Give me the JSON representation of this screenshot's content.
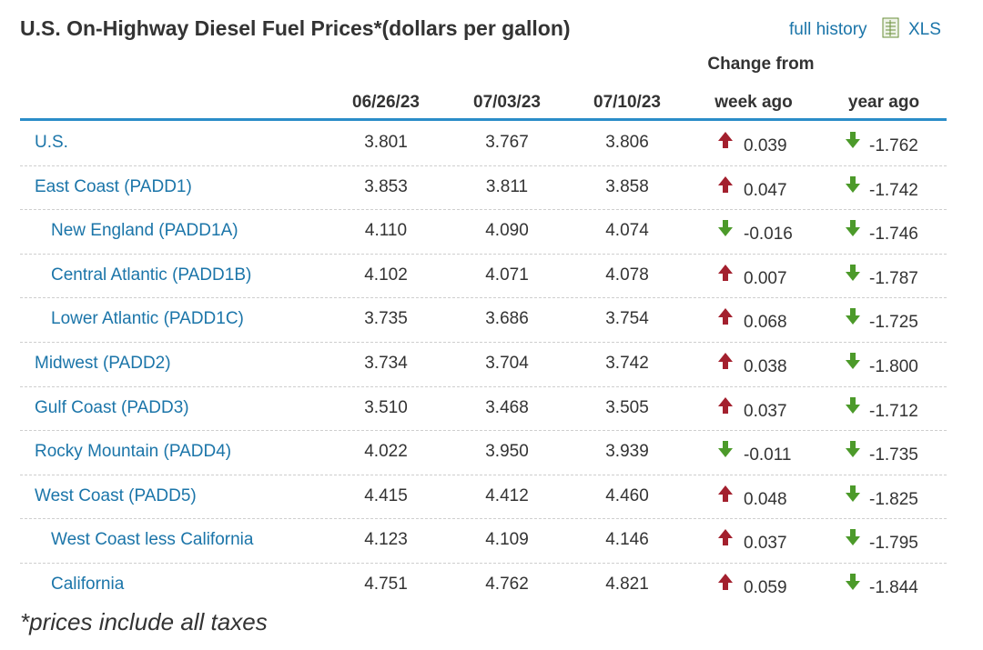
{
  "header": {
    "title": "U.S. On-Highway Diesel Fuel Prices*(dollars per gallon)",
    "links": [
      "full history",
      "XLS"
    ]
  },
  "table": {
    "group_header": "Change from",
    "columns": [
      "06/26/23",
      "07/03/23",
      "07/10/23",
      "week ago",
      "year ago"
    ],
    "rows": [
      {
        "label": "U.S.",
        "cells": [
          "3.801",
          "3.767",
          "3.806",
          "0.039",
          "-1.762"
        ]
      },
      {
        "label": "East Coast (PADD1)",
        "cells": [
          "3.853",
          "3.811",
          "3.858",
          "0.047",
          "-1.742"
        ],
        "subrows": [
          {
            "label": "New England (PADD1A)",
            "cells": [
              "4.110",
              "4.090",
              "4.074",
              "-0.016",
              "-1.746"
            ]
          },
          {
            "label": "Central Atlantic (PADD1B)",
            "cells": [
              "4.102",
              "4.071",
              "4.078",
              "0.007",
              "-1.787"
            ]
          },
          {
            "label": "Lower Atlantic (PADD1C)",
            "cells": [
              "3.735",
              "3.686",
              "3.754",
              "0.068",
              "-1.725"
            ]
          }
        ]
      },
      {
        "label": "Midwest (PADD2)",
        "cells": [
          "3.734",
          "3.704",
          "3.742",
          "0.038",
          "-1.800"
        ]
      },
      {
        "label": "Gulf Coast (PADD3)",
        "cells": [
          "3.510",
          "3.468",
          "3.505",
          "0.037",
          "-1.712"
        ]
      },
      {
        "label": "Rocky Mountain (PADD4)",
        "cells": [
          "4.022",
          "3.950",
          "3.939",
          "-0.011",
          "-1.735"
        ]
      },
      {
        "label": "West Coast (PADD5)",
        "cells": [
          "4.415",
          "4.412",
          "4.460",
          "0.048",
          "-1.825"
        ],
        "subrows": [
          {
            "label": "West Coast less California",
            "cells": [
              "4.123",
              "4.109",
              "4.146",
              "0.037",
              "-1.795"
            ]
          },
          {
            "label": "California",
            "cells": [
              "4.751",
              "4.762",
              "4.821",
              "0.059",
              "-1.844"
            ]
          }
        ]
      }
    ]
  },
  "footnote": "*prices include all taxes"
}
